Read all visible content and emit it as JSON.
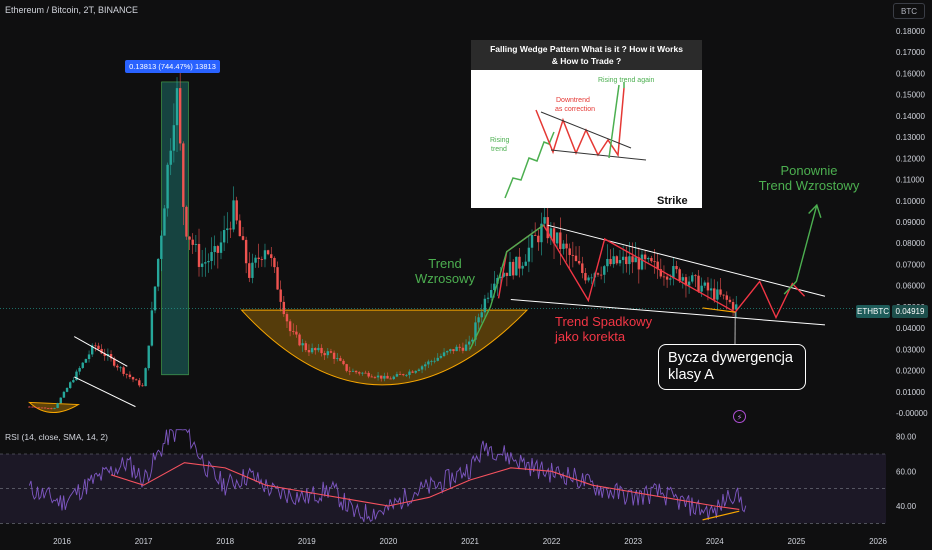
{
  "header": {
    "title": "Ethereum / Bitcoin, 2T, BINANCE",
    "currency": "BTC"
  },
  "price_tag": {
    "symbol": "ETHBTC",
    "value": "0.04919"
  },
  "measure_label": "0.13813 (744.47%) 13813",
  "inset": {
    "title_line1": "Falling Wedge Pattern What is it ? How it Works",
    "title_line2": "& How to Trade ?",
    "label_rising_again": "Rising trend again",
    "label_downtrend_1": "Downtrend",
    "label_downtrend_2": "as correction",
    "label_rising_1": "Rising",
    "label_rising_2": "trend",
    "brand": "Strike"
  },
  "annotations": {
    "trend_up_1": "Trend",
    "trend_up_2": "Wzrosowy",
    "again_1": "Ponownie",
    "again_2": "Trend Wzrostowy",
    "down_1": "Trend Spadkowy",
    "down_2": "jako korekta",
    "callout_1": "Bycza dywergencja",
    "callout_2": "klasy A"
  },
  "rsi": {
    "label": "RSI (14, close, SMA, 14, 2)"
  },
  "colors": {
    "up": "#26a69a",
    "down": "#ef5350",
    "rsi": "#7e57c2",
    "rsi_sma": "#f7525f",
    "cup": "#f7a600"
  },
  "chart_data": {
    "type": "line",
    "title": "Ethereum / Bitcoin, 2T, BINANCE",
    "y_axis_ticks": [
      "0.18000",
      "0.17000",
      "0.16000",
      "0.15000",
      "0.14000",
      "0.13000",
      "0.12000",
      "0.11000",
      "0.10000",
      "0.09000",
      "0.08000",
      "0.07000",
      "0.06000",
      "0.05000",
      "0.04000",
      "0.03000",
      "0.02000",
      "0.01000",
      "-0.00000"
    ],
    "x_axis_ticks": [
      "2016",
      "2017",
      "2018",
      "2019",
      "2020",
      "2021",
      "2022",
      "2023",
      "2024",
      "2025",
      "2026"
    ],
    "ylim": [
      0,
      0.18
    ],
    "last_price": 0.04919,
    "series": [
      {
        "name": "ETHBTC",
        "x": [
          2015.6,
          2015.9,
          2016.2,
          2016.4,
          2016.8,
          2017.0,
          2017.2,
          2017.4,
          2017.5,
          2017.7,
          2017.9,
          2018.1,
          2018.3,
          2018.5,
          2018.8,
          2019.0,
          2019.3,
          2019.5,
          2019.8,
          2020.0,
          2020.3,
          2020.5,
          2020.8,
          2021.0,
          2021.1,
          2021.3,
          2021.6,
          2021.9,
          2022.2,
          2022.4,
          2022.7,
          2023.0,
          2023.3,
          2023.6,
          2023.9,
          2024.1,
          2024.3
        ],
        "y": [
          0.003,
          0.002,
          0.02,
          0.032,
          0.018,
          0.012,
          0.08,
          0.155,
          0.09,
          0.07,
          0.075,
          0.095,
          0.065,
          0.08,
          0.038,
          0.03,
          0.028,
          0.02,
          0.018,
          0.016,
          0.02,
          0.024,
          0.03,
          0.032,
          0.045,
          0.065,
          0.07,
          0.088,
          0.075,
          0.065,
          0.07,
          0.072,
          0.068,
          0.065,
          0.058,
          0.054,
          0.049
        ]
      }
    ],
    "rsi_ticks": [
      "80.00",
      "60.00",
      "40.00"
    ],
    "rsi_ylim": [
      25,
      85
    ],
    "rsi_series": {
      "name": "RSI (14, close, SMA, 14, 2)",
      "x": [
        2015.6,
        2016.0,
        2016.4,
        2016.8,
        2017.0,
        2017.3,
        2017.5,
        2017.8,
        2018.0,
        2018.3,
        2018.6,
        2019.0,
        2019.3,
        2019.6,
        2020.0,
        2020.3,
        2020.6,
        2021.0,
        2021.2,
        2021.5,
        2021.9,
        2022.2,
        2022.6,
        2023.0,
        2023.3,
        2023.7,
        2024.0,
        2024.2,
        2024.4
      ],
      "y": [
        50,
        42,
        55,
        65,
        55,
        80,
        85,
        60,
        52,
        58,
        48,
        45,
        50,
        35,
        38,
        48,
        52,
        62,
        75,
        68,
        60,
        58,
        50,
        45,
        48,
        40,
        36,
        48,
        40
      ]
    },
    "rsi_sma_series": {
      "x": [
        2016.6,
        2017.0,
        2017.5,
        2018.0,
        2018.5,
        2019.0,
        2019.5,
        2020.0,
        2020.5,
        2021.0,
        2021.5,
        2022.0,
        2022.5,
        2023.0,
        2023.5,
        2024.0,
        2024.3
      ],
      "y": [
        58,
        52,
        65,
        62,
        52,
        48,
        44,
        40,
        45,
        55,
        62,
        60,
        52,
        48,
        44,
        40,
        38
      ]
    }
  }
}
